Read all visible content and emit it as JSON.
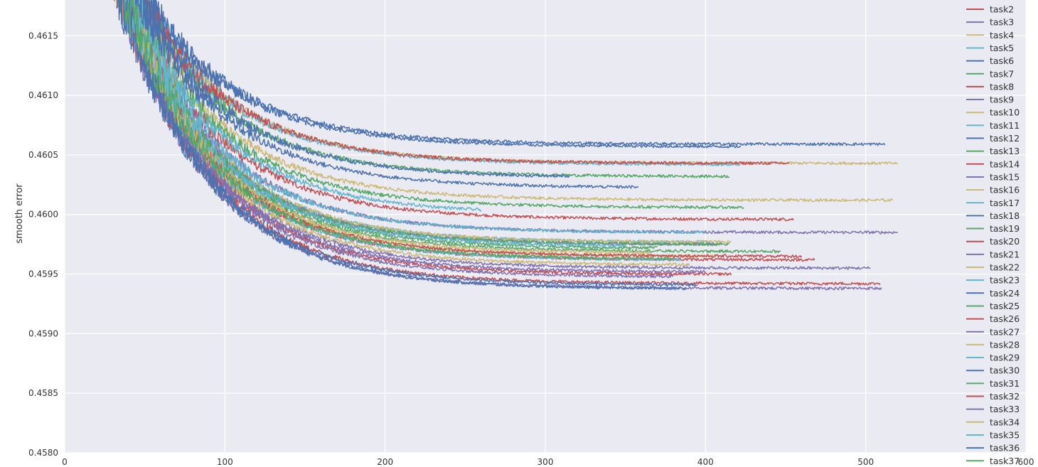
{
  "chart_data": {
    "type": "line",
    "title": "",
    "xlabel": "",
    "ylabel": "smooth error",
    "xlim": [
      0,
      600
    ],
    "ylim": [
      0.458,
      0.4618
    ],
    "x_ticks": [
      0,
      100,
      200,
      300,
      400,
      500,
      600
    ],
    "x_tick_labels": [
      "0",
      "100",
      "200",
      "300",
      "400",
      "500",
      "600"
    ],
    "y_ticks": [
      0.458,
      0.4585,
      0.459,
      0.4595,
      0.46,
      0.4605,
      0.461,
      0.4615
    ],
    "y_tick_labels": [
      "0.4580",
      "0.4585",
      "0.4590",
      "0.4595",
      "0.4600",
      "0.4605",
      "0.4610",
      "0.4615"
    ],
    "grid": true,
    "legend_position": "right",
    "colors": {
      "background": "#eaeaf2",
      "grid": "#ffffff",
      "palette": [
        "#4c72b0",
        "#55a868",
        "#c44e52",
        "#8172b2",
        "#ccb974",
        "#64b5cd"
      ]
    },
    "series": [
      {
        "name": "task2",
        "color": "#c44e52",
        "x_end": 455,
        "y_end": 0.45996
      },
      {
        "name": "task3",
        "color": "#8172b2",
        "x_end": 520,
        "y_end": 0.45985
      },
      {
        "name": "task4",
        "color": "#ccb974",
        "x_end": 520,
        "y_end": 0.46043
      },
      {
        "name": "task5",
        "color": "#64b5cd",
        "x_end": 422,
        "y_end": 0.46042
      },
      {
        "name": "task6",
        "color": "#4c72b0",
        "x_end": 512,
        "y_end": 0.46059
      },
      {
        "name": "task7",
        "color": "#55a868",
        "x_end": 415,
        "y_end": 0.46032
      },
      {
        "name": "task8",
        "color": "#c44e52",
        "x_end": 452,
        "y_end": 0.46043
      },
      {
        "name": "task9",
        "color": "#8172b2",
        "x_end": 503,
        "y_end": 0.45955
      },
      {
        "name": "task10",
        "color": "#ccb974",
        "x_end": 517,
        "y_end": 0.46012
      },
      {
        "name": "task11",
        "color": "#64b5cd",
        "x_end": 403,
        "y_end": 0.45977
      },
      {
        "name": "task12",
        "color": "#4c72b0",
        "x_end": 422,
        "y_end": 0.46057
      },
      {
        "name": "task13",
        "color": "#55a868",
        "x_end": 424,
        "y_end": 0.46006
      },
      {
        "name": "task14",
        "color": "#c44e52",
        "x_end": 468,
        "y_end": 0.45962
      },
      {
        "name": "task15",
        "color": "#8172b2",
        "x_end": 510,
        "y_end": 0.45938
      },
      {
        "name": "task16",
        "color": "#ccb974",
        "x_end": 416,
        "y_end": 0.45977
      },
      {
        "name": "task17",
        "color": "#64b5cd",
        "x_end": 400,
        "y_end": 0.45985
      },
      {
        "name": "task18",
        "color": "#4c72b0",
        "x_end": 358,
        "y_end": 0.46023
      },
      {
        "name": "task19",
        "color": "#55a868",
        "x_end": 447,
        "y_end": 0.45969
      },
      {
        "name": "task20",
        "color": "#c44e52",
        "x_end": 416,
        "y_end": 0.4595
      },
      {
        "name": "task21",
        "color": "#8172b2",
        "x_end": 410,
        "y_end": 0.45975
      },
      {
        "name": "task22",
        "color": "#ccb974",
        "x_end": 407,
        "y_end": 0.45965
      },
      {
        "name": "task23",
        "color": "#64b5cd",
        "x_end": 260,
        "y_end": 0.46004
      },
      {
        "name": "task24",
        "color": "#4c72b0",
        "x_end": 315,
        "y_end": 0.46032
      },
      {
        "name": "task25",
        "color": "#55a868",
        "x_end": 415,
        "y_end": 0.45975
      },
      {
        "name": "task26",
        "color": "#c44e52",
        "x_end": 509,
        "y_end": 0.45942
      },
      {
        "name": "task27",
        "color": "#8172b2",
        "x_end": 400,
        "y_end": 0.45952
      },
      {
        "name": "task28",
        "color": "#ccb974",
        "x_end": 390,
        "y_end": 0.45958
      },
      {
        "name": "task29",
        "color": "#64b5cd",
        "x_end": 385,
        "y_end": 0.45962
      },
      {
        "name": "task30",
        "color": "#4c72b0",
        "x_end": 388,
        "y_end": 0.45938
      },
      {
        "name": "task31",
        "color": "#55a868",
        "x_end": 370,
        "y_end": 0.45972
      },
      {
        "name": "task32",
        "color": "#c44e52",
        "x_end": 460,
        "y_end": 0.45965
      },
      {
        "name": "task33",
        "color": "#8172b2",
        "x_end": 380,
        "y_end": 0.45948
      },
      {
        "name": "task34",
        "color": "#ccb974",
        "x_end": 365,
        "y_end": 0.45968
      },
      {
        "name": "task35",
        "color": "#64b5cd",
        "x_end": 350,
        "y_end": 0.45974
      },
      {
        "name": "task36",
        "color": "#4c72b0",
        "x_end": 395,
        "y_end": 0.45941
      },
      {
        "name": "task37",
        "color": "#55a868",
        "x_end": 380,
        "y_end": 0.45963
      }
    ]
  }
}
